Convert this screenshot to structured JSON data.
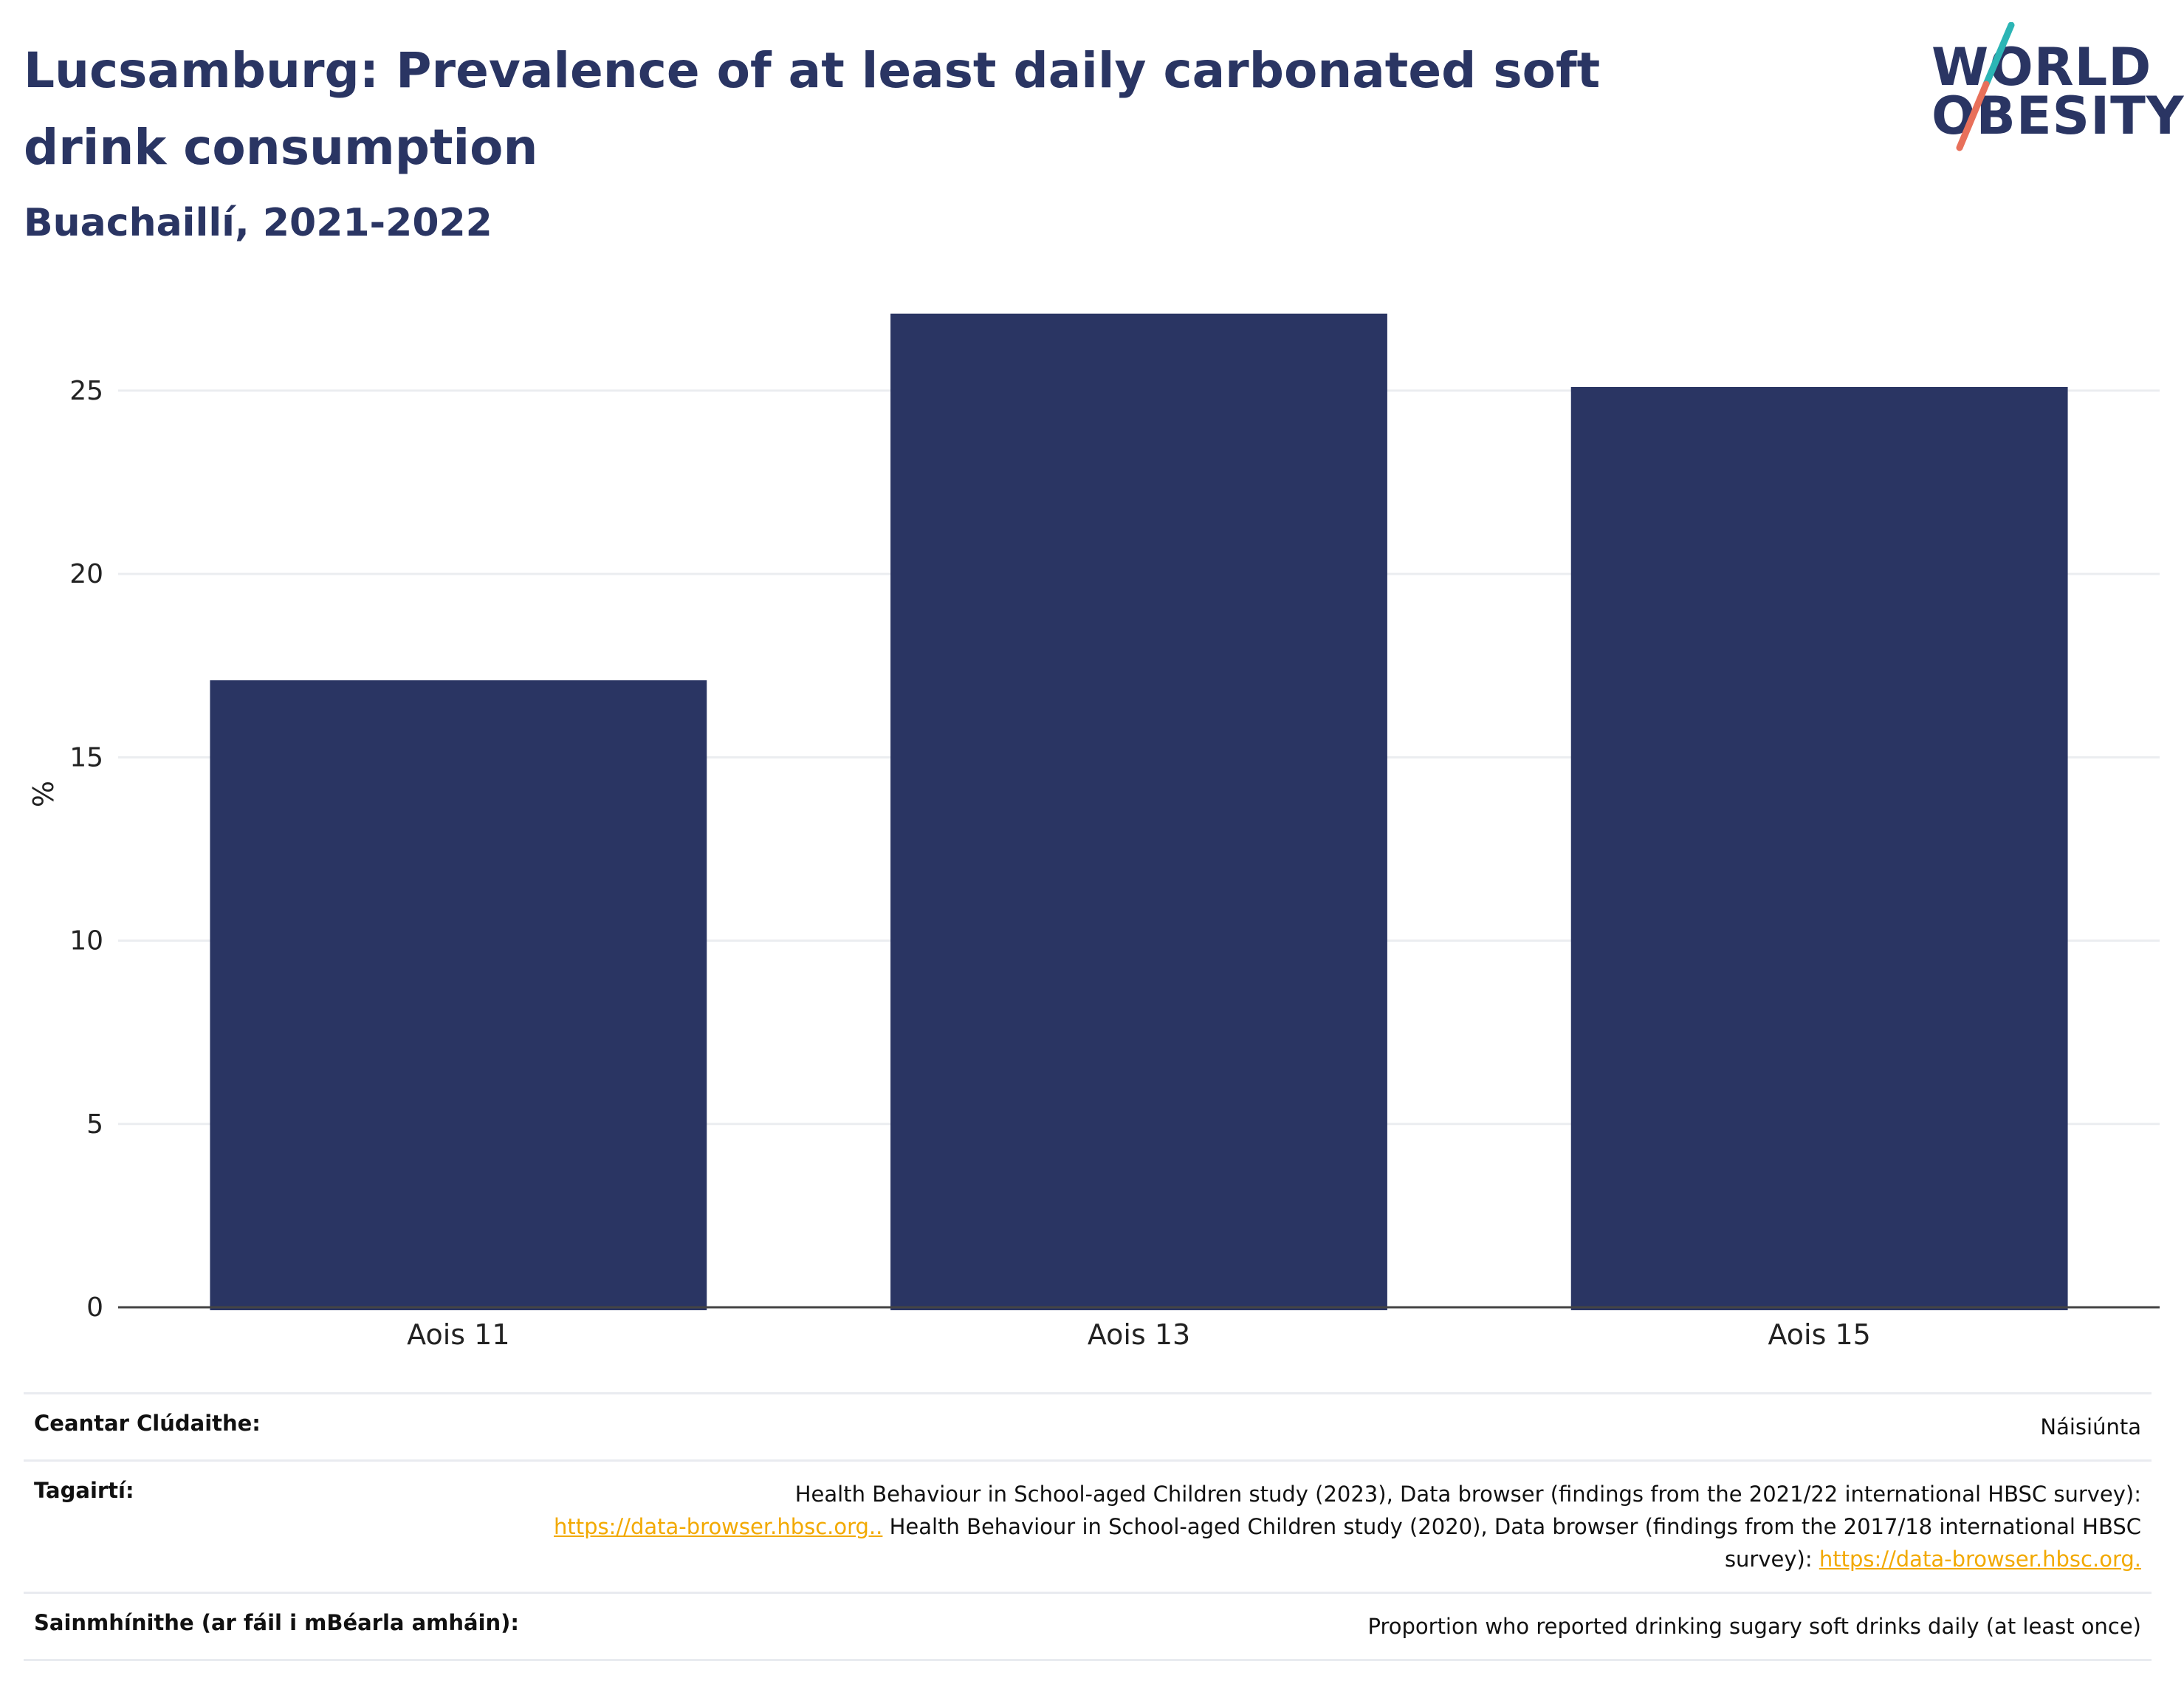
{
  "header": {
    "title": "Lucsamburg: Prevalence of at least daily carbonated soft drink consumption",
    "subtitle": "Buachaillí, 2021-2022"
  },
  "logo": {
    "line1": "WORLD",
    "line2": "OBESITY",
    "colors": {
      "text": "#2a3563",
      "slash_top": "#2cb5b5",
      "slash_bottom": "#e8705a"
    }
  },
  "chart_data": {
    "type": "bar",
    "categories": [
      "Aois 11",
      "Aois 13",
      "Aois 15"
    ],
    "values": [
      17.1,
      27.1,
      25.1
    ],
    "title": "Lucsamburg: Prevalence of at least daily carbonated soft drink consumption",
    "subtitle": "Buachaillí, 2021-2022",
    "xlabel": "",
    "ylabel": "%",
    "ylim": [
      0,
      28
    ],
    "yticks": [
      0,
      5,
      10,
      15,
      20,
      25
    ],
    "grid": true,
    "bar_color": "#2a3563"
  },
  "info": {
    "coverage": {
      "label": "Ceantar Clúdaithe:",
      "value": "Náisiúnta"
    },
    "references": {
      "label": "Tagairtí:",
      "text1": "Health Behaviour in School-aged Children study (2023), Data browser (findings from the 2021/22 international HBSC survey):",
      "link1": "https://data-browser.hbsc.org..",
      "text2": " Health Behaviour in School-aged Children study (2020), Data browser (findings from the 2017/18 international HBSC survey):",
      "link2": "https://data-browser.hbsc.org."
    },
    "definitions": {
      "label": "Sainmhínithe (ar fáil i mBéarla amháin):",
      "value": "Proportion who reported drinking sugary soft drinks daily (at least once)"
    }
  }
}
